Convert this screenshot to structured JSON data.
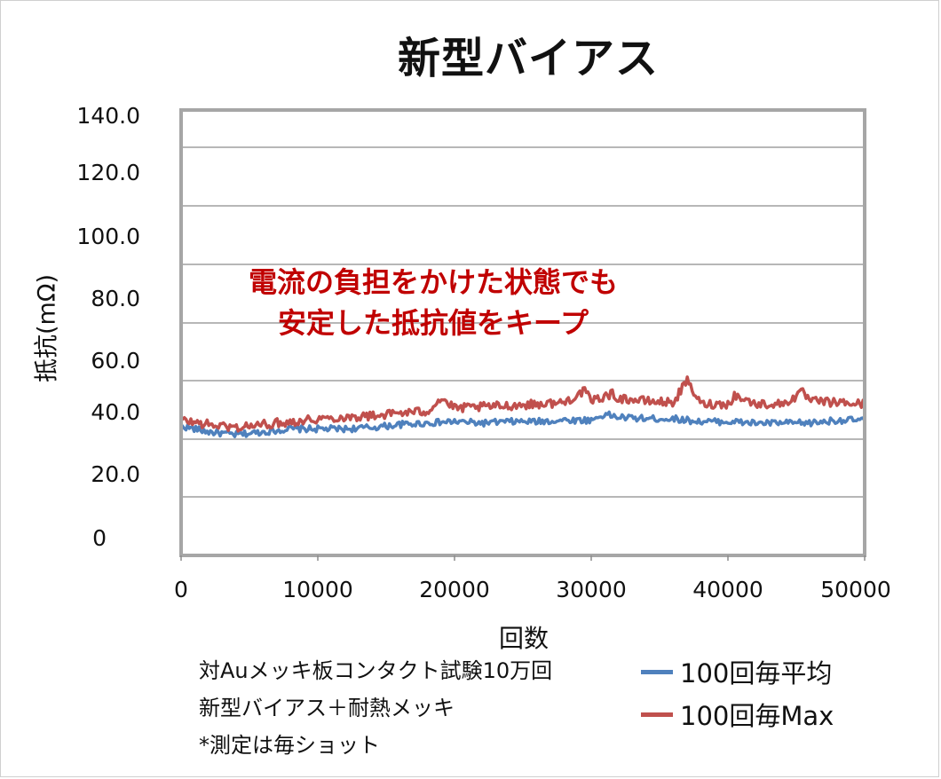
{
  "chart_data": {
    "type": "line",
    "title": "新型バイアス",
    "xlabel": "回数",
    "ylabel": "抵抗(mΩ)",
    "xlim": [
      0,
      50000
    ],
    "ylim": [
      0,
      140
    ],
    "xticks": [
      "0",
      "10000",
      "20000",
      "30000",
      "40000",
      "50000"
    ],
    "yticks": [
      "0",
      "20.0",
      "40.0",
      "60.0",
      "80.0",
      "100.0",
      "120.0",
      "140.0"
    ],
    "grid": true,
    "legend_position": "bottom-right",
    "annotation": [
      "電流の負担をかけた状態でも",
      "安定した抵抗値をキープ"
    ],
    "annotation_color": "#c00000",
    "notes": [
      "対Auメッキ板コンタクト試験10万回",
      "新型バイアス＋耐熱メッキ",
      "*測定は毎ショット"
    ],
    "series": [
      {
        "name": "100回毎平均",
        "color": "#4f81bd",
        "x": [
          0,
          2000,
          4000,
          6000,
          8000,
          10000,
          12000,
          14000,
          16000,
          18000,
          20000,
          22000,
          24000,
          26000,
          28000,
          30000,
          31000,
          32000,
          34000,
          36000,
          38000,
          40000,
          42000,
          44000,
          46000,
          48000,
          50000
        ],
        "y": [
          44.5,
          42.5,
          41.5,
          42.5,
          43.5,
          43.5,
          43.5,
          44,
          45,
          45.5,
          46,
          45.5,
          46,
          46,
          46.5,
          46.5,
          48.5,
          47.5,
          47,
          47,
          46,
          46,
          45.5,
          45.5,
          45.5,
          46.5,
          46.5
        ]
      },
      {
        "name": "100回毎Max",
        "color": "#c0504d",
        "x": [
          0,
          2000,
          4000,
          6000,
          8000,
          10000,
          12000,
          14000,
          16000,
          18000,
          19000,
          20000,
          22000,
          24000,
          26000,
          28000,
          29500,
          30000,
          31500,
          32000,
          34000,
          36000,
          37000,
          38000,
          40000,
          40500,
          42000,
          44000,
          45500,
          46000,
          48000,
          50000
        ],
        "y": [
          46.5,
          45,
          44,
          45,
          46,
          47,
          47.5,
          48,
          49,
          49.5,
          54,
          50.5,
          51,
          51.5,
          52,
          52.5,
          56.5,
          53,
          55.5,
          54,
          53,
          52.5,
          60,
          52,
          52,
          55,
          52,
          52,
          56,
          53,
          52.5,
          52
        ]
      }
    ]
  }
}
